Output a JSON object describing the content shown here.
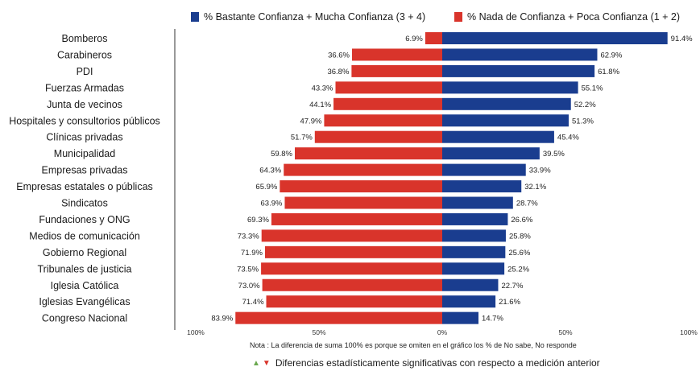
{
  "colors": {
    "trust": "#1a3d8f",
    "distrust": "#d9342b"
  },
  "legend": {
    "trust_label": "% Bastante Confianza + Mucha Confianza (3 + 4)",
    "distrust_label": "% Nada de Confianza + Poca Confianza (1 + 2)"
  },
  "note": "Nota : La diferencia de suma 100% es porque se omiten en el gráfico los % de No sabe, No responde",
  "significance": {
    "up_icon": "triangle-up-icon",
    "down_icon": "triangle-down-icon",
    "label": "Diferencias estadísticamente significativas con respecto a medición anterior"
  },
  "chart_data": {
    "type": "bar",
    "orientation": "horizontal-diverging",
    "categories": [
      "Bomberos",
      "Carabineros",
      "PDI",
      "Fuerzas Armadas",
      "Junta de vecinos",
      "Hospitales y consultorios públicos",
      "Clínicas privadas",
      "Municipalidad",
      "Empresas privadas",
      "Empresas estatales o públicas",
      "Sindicatos",
      "Fundaciones y ONG",
      "Medios de comunicación",
      "Gobierno Regional",
      "Tribunales de justicia",
      "Iglesia Católica",
      "Iglesias Evangélicas",
      "Congreso Nacional"
    ],
    "series": [
      {
        "name": "% Nada de Confianza + Poca Confianza (1 + 2)",
        "values": [
          6.9,
          36.6,
          36.8,
          43.3,
          44.1,
          47.9,
          51.7,
          59.8,
          64.3,
          65.9,
          63.9,
          69.3,
          73.3,
          71.9,
          73.5,
          73.0,
          71.4,
          83.9
        ]
      },
      {
        "name": "% Bastante Confianza + Mucha Confianza (3 + 4)",
        "values": [
          91.4,
          62.9,
          61.8,
          55.1,
          52.2,
          51.3,
          45.4,
          39.5,
          33.9,
          32.1,
          28.7,
          26.6,
          25.8,
          25.6,
          25.2,
          22.7,
          21.6,
          14.7
        ]
      }
    ],
    "value_labels": {
      "distrust": [
        "6.9%",
        "36.6%",
        "36.8%",
        "43.3%",
        "44.1%",
        "47.9%",
        "51.7%",
        "59.8%",
        "64.3%",
        "65.9%",
        "63.9%",
        "69.3%",
        "73.3%",
        "71.9%",
        "73.5%",
        "73.0%",
        "71.4%",
        "83.9%"
      ],
      "trust": [
        "91.4%",
        "62.9%",
        "61.8%",
        "55.1%",
        "52.2%",
        "51.3%",
        "45.4%",
        "39.5%",
        "33.9%",
        "32.1%",
        "28.7%",
        "26.6%",
        "25.8%",
        "25.6%",
        "25.2%",
        "22.7%",
        "21.6%",
        "14.7%"
      ]
    },
    "x_ticks": [
      "100%",
      "50%",
      "0%",
      "50%",
      "100%"
    ],
    "xlim": [
      -100,
      100
    ],
    "grid": false
  }
}
